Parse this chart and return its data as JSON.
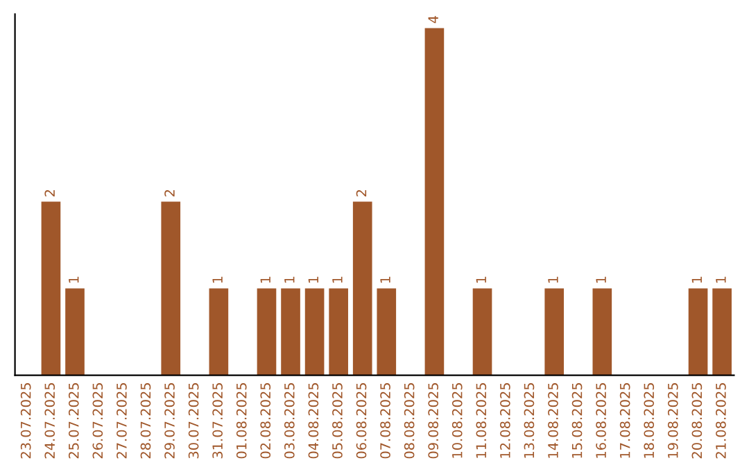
{
  "chart_data": {
    "type": "bar",
    "categories": [
      "23.07.2025",
      "24.07.2025",
      "25.07.2025",
      "26.07.2025",
      "27.07.2025",
      "28.07.2025",
      "29.07.2025",
      "30.07.2025",
      "31.07.2025",
      "01.08.2025",
      "02.08.2025",
      "03.08.2025",
      "04.08.2025",
      "05.08.2025",
      "06.08.2025",
      "07.08.2025",
      "08.08.2025",
      "09.08.2025",
      "10.08.2025",
      "11.08.2025",
      "12.08.2025",
      "13.08.2025",
      "14.08.2025",
      "15.08.2025",
      "16.08.2025",
      "17.08.2025",
      "18.08.2025",
      "19.08.2025",
      "20.08.2025",
      "21.08.2025"
    ],
    "values": [
      0,
      2,
      1,
      0,
      0,
      0,
      2,
      0,
      1,
      0,
      1,
      1,
      1,
      1,
      2,
      1,
      0,
      4,
      0,
      1,
      0,
      0,
      1,
      0,
      1,
      0,
      0,
      0,
      1,
      1
    ],
    "value_labels": [
      null,
      "2",
      "1",
      null,
      null,
      null,
      "2",
      null,
      "1",
      null,
      "1",
      "1",
      "1",
      "1",
      "2",
      "1",
      null,
      "4",
      null,
      "1",
      null,
      null,
      "1",
      null,
      "1",
      null,
      null,
      null,
      "1",
      "1"
    ],
    "color": "#a0572a",
    "tick_labels": "x",
    "grid": false,
    "legend": false
  }
}
